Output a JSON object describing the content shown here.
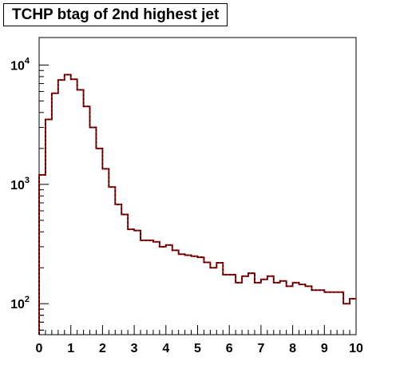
{
  "chart_data": {
    "type": "histogram",
    "title": "TCHP btag of 2nd highest jet",
    "xlabel": "",
    "ylabel": "",
    "xlim": [
      0,
      10
    ],
    "ylim": [
      55,
      17000
    ],
    "y_scale": "log",
    "x_ticks": [
      "0",
      "1",
      "2",
      "3",
      "4",
      "5",
      "6",
      "7",
      "8",
      "9",
      "10"
    ],
    "y_ticks": [
      {
        "value": 100,
        "base": "10",
        "exp": "2"
      },
      {
        "value": 1000,
        "base": "10",
        "exp": "3"
      },
      {
        "value": 10000,
        "base": "10",
        "exp": "4"
      }
    ],
    "grid": false,
    "bin_edges_start": 0,
    "bin_width": 0.2,
    "series": [
      {
        "style": "solid",
        "color": "#cc0000",
        "values": [
          1200,
          3500,
          5800,
          7500,
          8300,
          7600,
          6200,
          4500,
          3000,
          2000,
          1350,
          950,
          680,
          560,
          420,
          410,
          340,
          340,
          330,
          300,
          310,
          280,
          260,
          255,
          250,
          245,
          222,
          200,
          220,
          175,
          175,
          150,
          170,
          180,
          150,
          160,
          170,
          150,
          155,
          140,
          150,
          145,
          140,
          130,
          130,
          125,
          125,
          125,
          100,
          110
        ]
      },
      {
        "style": "dashed",
        "color": "#000000",
        "values": [
          1200,
          3500,
          5800,
          7500,
          8300,
          7600,
          6200,
          4500,
          3000,
          2000,
          1350,
          950,
          680,
          560,
          420,
          410,
          340,
          340,
          330,
          300,
          310,
          280,
          260,
          255,
          250,
          245,
          222,
          200,
          220,
          175,
          175,
          150,
          170,
          180,
          150,
          160,
          170,
          150,
          155,
          140,
          150,
          145,
          140,
          130,
          130,
          125,
          125,
          125,
          100,
          110
        ]
      }
    ]
  }
}
